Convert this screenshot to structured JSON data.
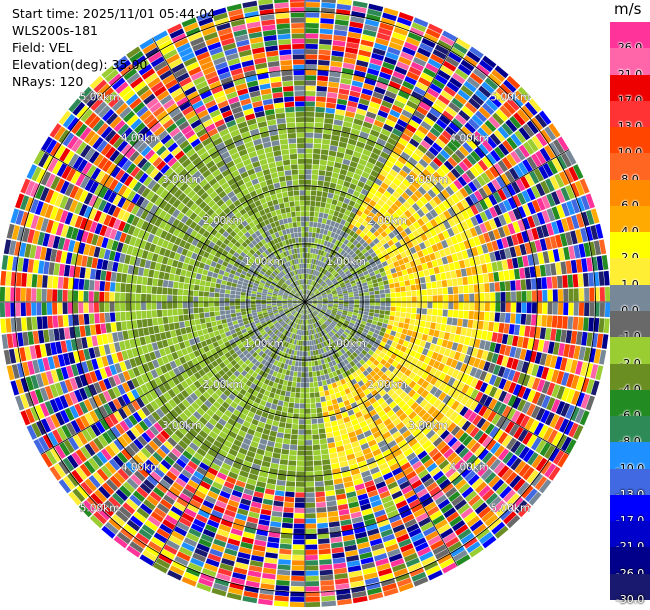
{
  "header": {
    "start_time": "Start time: 2025/11/01 05:44:04",
    "instrument": "WLS200s-181",
    "field": "Field: VEL",
    "elevation": "Elevation(deg): 35.00",
    "nrays": "NRays: 120"
  },
  "colorbar": {
    "unit": "m/s",
    "levels": [
      {
        "label": "26.0",
        "color": "#ff3399"
      },
      {
        "label": "21.0",
        "color": "#ff66aa"
      },
      {
        "label": "17.0",
        "color": "#ee0000"
      },
      {
        "label": "13.0",
        "color": "#ff3333"
      },
      {
        "label": "10.0",
        "color": "#ff4500"
      },
      {
        "label": "8.0",
        "color": "#ff6622"
      },
      {
        "label": "6.0",
        "color": "#ff8c00"
      },
      {
        "label": "4.0",
        "color": "#ffaa00"
      },
      {
        "label": "2.0",
        "color": "#ffff00"
      },
      {
        "label": "1.0",
        "color": "#ffee33"
      },
      {
        "label": "0.0",
        "color": "#778899"
      },
      {
        "label": "-1.0",
        "color": "#696969"
      },
      {
        "label": "-2.0",
        "color": "#9acd32"
      },
      {
        "label": "-4.0",
        "color": "#6b8e23"
      },
      {
        "label": "-6.0",
        "color": "#228b22"
      },
      {
        "label": "-8.0",
        "color": "#2e8b57"
      },
      {
        "label": "-10.0",
        "color": "#1e90ff"
      },
      {
        "label": "-13.0",
        "color": "#4169e1"
      },
      {
        "label": "-17.0",
        "color": "#0000ff"
      },
      {
        "label": "-21.0",
        "color": "#0000cd"
      },
      {
        "label": "-26.0",
        "color": "#00008b"
      },
      {
        "label": "-30.0",
        "color": "#191970"
      }
    ]
  },
  "chart_data": {
    "type": "heatmap",
    "projection": "polar PPI",
    "field": "VEL",
    "units": "m/s",
    "n_rays": 120,
    "range_rings_km": [
      1,
      2,
      3,
      4,
      5
    ],
    "ring_labels": [
      "1.00km",
      "2.00km",
      "3.00km",
      "4.00km",
      "5.00km"
    ],
    "max_range_km": 5.25,
    "spoke_angles_deg": [
      0,
      30,
      60,
      90,
      120,
      150,
      180,
      210,
      240,
      270,
      300,
      330
    ],
    "label_angles_deg": [
      45,
      135,
      225,
      315
    ],
    "velocity_pattern": {
      "near_field_km": [
        0,
        1.4
      ],
      "near_field_values": [
        -4.0,
        -2.0,
        0.0
      ],
      "mid_field_km": [
        1.4,
        3.2
      ],
      "approaching_side_values": [
        -2.0,
        -4.0
      ],
      "receding_side_values": [
        1.0,
        2.0,
        4.0
      ],
      "far_field_km": [
        3.2,
        5.25
      ],
      "far_field": "noise (all colors)"
    }
  }
}
